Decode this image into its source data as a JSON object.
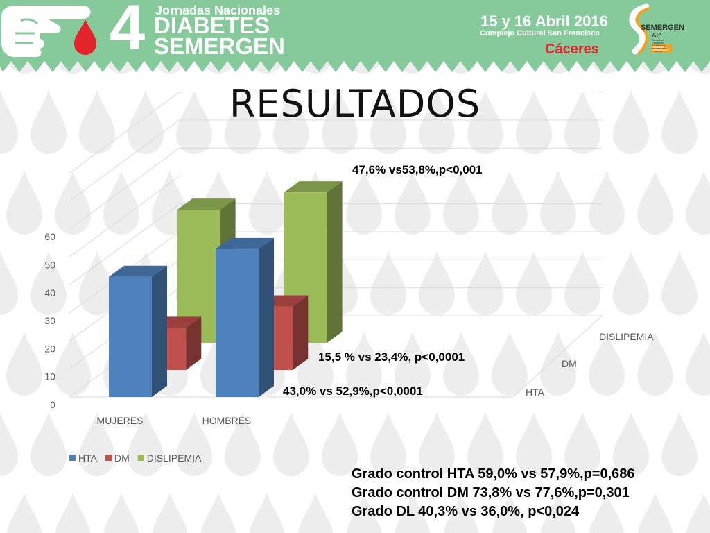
{
  "header": {
    "edition_number": "4",
    "line1": "Jornadas Nacionales",
    "line2": "DIABETES",
    "line3": "SEMERGEN",
    "dates": "15 y 16 Abril 2016",
    "venue": "Complejo Cultural San Francisco",
    "city": "Cáceres",
    "logo_name": "SEMERGEN",
    "logo_sub": "AP",
    "logo_caption": [
      "Sociedad",
      "Española",
      "de Médicos",
      "de Atención",
      "Primaria"
    ],
    "logo_badge": [
      "Diabetes",
      "SEMERGEN"
    ]
  },
  "title": "RESULTADOS",
  "colors": {
    "header_green": "#86c99a",
    "hta": "#4f81bd",
    "dm": "#c0504d",
    "dislipemia": "#9bbb59",
    "drop": "#ededed"
  },
  "icons": [
    "hand-pointing-icon",
    "blood-drop-icon",
    "semergen-logo-icon"
  ],
  "chart_data": {
    "type": "bar",
    "subtype": "3d-clustered",
    "categories": [
      "MUJERES",
      "HOMBRES"
    ],
    "series": [
      {
        "name": "HTA",
        "values": [
          43.0,
          52.9
        ]
      },
      {
        "name": "DM",
        "values": [
          15.5,
          23.4
        ]
      },
      {
        "name": "DISLIPEMIA",
        "values": [
          47.6,
          53.8
        ]
      }
    ],
    "depth_labels": [
      "HTA",
      "DM",
      "DISLIPEMIA"
    ],
    "yticks": [
      0,
      10,
      20,
      30,
      40,
      50,
      60
    ],
    "ylim": [
      0,
      60
    ],
    "grid": true,
    "legend": "bottom-left",
    "annotations": [
      "47,6% vs53,8%,p<0,001",
      "15,5 % vs 23,4%, p<0,0001",
      "43,0% vs 52,9%,p<0,0001"
    ]
  },
  "notes": [
    "Grado control HTA  59,0% vs 57,9%,p=0,686",
    "Grado control DM 73,8% vs 77,6%,p=0,301",
    "Grado DL 40,3% vs 36,0%, p<0,024"
  ]
}
